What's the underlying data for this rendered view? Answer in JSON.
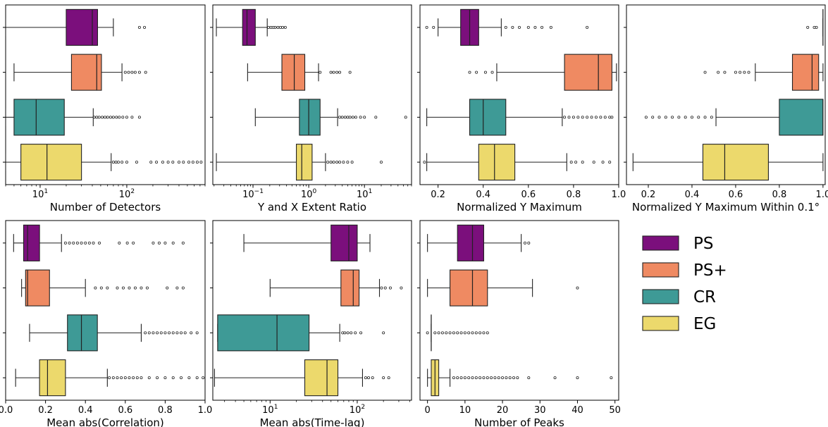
{
  "legend": {
    "placement": "right",
    "entries": [
      {
        "label": "PS",
        "color": "#7b0f7c"
      },
      {
        "label": "PS+",
        "color": "#ef8a62"
      },
      {
        "label": "CR",
        "color": "#3e9a96"
      },
      {
        "label": "EG",
        "color": "#ecd96c"
      }
    ]
  },
  "chart_data": [
    {
      "type": "box",
      "xlabel": "Number of Detectors",
      "scale": "log",
      "xlim": [
        4,
        800
      ],
      "ticks": [
        {
          "v": 10,
          "t": "10",
          "e": "1"
        },
        {
          "v": 100,
          "t": "10",
          "e": "2"
        }
      ],
      "series": [
        {
          "name": "PS",
          "whislo": 4,
          "q1": 20,
          "med": 40,
          "q3": 46,
          "whishi": 70,
          "fliers": [
            140,
            160
          ]
        },
        {
          "name": "PS+",
          "whislo": 5,
          "q1": 23,
          "med": 45,
          "q3": 51,
          "whishi": 88,
          "fliers": [
            96,
            105,
            115,
            125,
            140,
            165
          ]
        },
        {
          "name": "CR",
          "whislo": 4,
          "q1": 5,
          "med": 9,
          "q3": 19,
          "whishi": 41,
          "fliers": [
            42,
            45,
            48,
            52,
            56,
            60,
            65,
            70,
            76,
            82,
            90,
            100,
            115,
            140
          ]
        },
        {
          "name": "EG",
          "whislo": 4,
          "q1": 6,
          "med": 12,
          "q3": 30,
          "whishi": 66,
          "fliers": [
            70,
            75,
            80,
            88,
            100,
            130,
            190,
            220,
            260,
            300,
            340,
            400,
            450,
            520,
            580,
            650,
            720
          ]
        }
      ]
    },
    {
      "type": "box",
      "xlabel": "Y and X Extent Ratio",
      "scale": "log",
      "xlim": [
        0.019,
        70
      ],
      "ticks": [
        {
          "v": 0.1,
          "t": "10",
          "e": "−1"
        },
        {
          "v": 1,
          "t": "10",
          "e": "0"
        },
        {
          "v": 10,
          "t": "10",
          "e": "1"
        }
      ],
      "series": [
        {
          "name": "PS",
          "whislo": 0.022,
          "q1": 0.065,
          "med": 0.078,
          "q3": 0.11,
          "whishi": 0.18,
          "fliers": [
            0.19,
            0.21,
            0.23,
            0.25,
            0.28,
            0.31,
            0.34,
            0.38
          ]
        },
        {
          "name": "PS+",
          "whislo": 0.08,
          "q1": 0.33,
          "med": 0.55,
          "q3": 0.85,
          "whishi": 1.5,
          "fliers": [
            1.6,
            2.5,
            2.8,
            3.2,
            3.6,
            5.5
          ]
        },
        {
          "name": "CR",
          "whislo": 0.11,
          "q1": 0.68,
          "med": 1.0,
          "q3": 1.6,
          "whishi": 3.3,
          "fliers": [
            3.6,
            4.0,
            4.5,
            5.0,
            5.5,
            6.2,
            7.0,
            8.5,
            10,
            16,
            55
          ]
        },
        {
          "name": "EG",
          "whislo": 0.022,
          "q1": 0.6,
          "med": 0.75,
          "q3": 1.15,
          "whishi": 2.0,
          "fliers": [
            2.2,
            2.5,
            2.8,
            3.2,
            3.6,
            4.2,
            5.0,
            6.0,
            20
          ]
        }
      ]
    },
    {
      "type": "box",
      "xlabel": "Normalized Y Maximum",
      "scale": "linear",
      "xlim": [
        0.12,
        1.0
      ],
      "ticks": [
        {
          "v": 0.2,
          "t": "0.2"
        },
        {
          "v": 0.4,
          "t": "0.4"
        },
        {
          "v": 0.6,
          "t": "0.6"
        },
        {
          "v": 0.8,
          "t": "0.8"
        },
        {
          "v": 1.0,
          "t": "1.0"
        }
      ],
      "series": [
        {
          "name": "PS",
          "whislo": 0.2,
          "q1": 0.3,
          "med": 0.34,
          "q3": 0.38,
          "whishi": 0.48,
          "fliers": [
            0.15,
            0.18,
            0.5,
            0.53,
            0.56,
            0.6,
            0.63,
            0.66,
            0.7,
            0.86
          ]
        },
        {
          "name": "PS+",
          "whislo": 0.46,
          "q1": 0.76,
          "med": 0.91,
          "q3": 0.97,
          "whishi": 0.99,
          "fliers": [
            0.34,
            0.37,
            0.41,
            0.44
          ]
        },
        {
          "name": "CR",
          "whislo": 0.15,
          "q1": 0.34,
          "med": 0.4,
          "q3": 0.5,
          "whishi": 0.75,
          "fliers": [
            0.76,
            0.78,
            0.8,
            0.82,
            0.84,
            0.86,
            0.88,
            0.9,
            0.92,
            0.94,
            0.96,
            0.97
          ]
        },
        {
          "name": "EG",
          "whislo": 0.15,
          "q1": 0.38,
          "med": 0.45,
          "q3": 0.54,
          "whishi": 0.77,
          "fliers": [
            0.14,
            0.79,
            0.81,
            0.84,
            0.89,
            0.93,
            0.96
          ]
        }
      ]
    },
    {
      "type": "box",
      "xlabel": "Normalized Y Maximum Within 0.1°",
      "scale": "linear",
      "xlim": [
        0.1,
        1.01
      ],
      "ticks": [
        {
          "v": 0.2,
          "t": "0.2"
        },
        {
          "v": 0.4,
          "t": "0.4"
        },
        {
          "v": 0.6,
          "t": "0.6"
        },
        {
          "v": 0.8,
          "t": "0.8"
        },
        {
          "v": 1.0,
          "t": "1.0"
        }
      ],
      "series": [
        {
          "name": "PS",
          "whislo": 1.0,
          "q1": 1.0,
          "med": 1.0,
          "q3": 1.0,
          "whishi": 1.0,
          "fliers": [
            0.93,
            0.96,
            0.97
          ]
        },
        {
          "name": "PS+",
          "whislo": 0.69,
          "q1": 0.86,
          "med": 0.95,
          "q3": 0.98,
          "whishi": 1.0,
          "fliers": [
            0.46,
            0.52,
            0.55,
            0.6,
            0.62,
            0.64,
            0.66
          ]
        },
        {
          "name": "CR",
          "whislo": 0.51,
          "q1": 0.8,
          "med": 1.0,
          "q3": 1.0,
          "whishi": 1.0,
          "fliers": [
            0.19,
            0.22,
            0.25,
            0.28,
            0.31,
            0.34,
            0.37,
            0.4,
            0.43,
            0.46,
            0.49
          ]
        },
        {
          "name": "EG",
          "whislo": 0.13,
          "q1": 0.45,
          "med": 0.55,
          "q3": 0.75,
          "whishi": 1.0,
          "fliers": []
        }
      ]
    },
    {
      "type": "box",
      "xlabel": "Mean abs(Correlation)",
      "scale": "linear",
      "xlim": [
        0.0,
        1.0
      ],
      "ticks": [
        {
          "v": 0.0,
          "t": "0.0"
        },
        {
          "v": 0.2,
          "t": "0.2"
        },
        {
          "v": 0.4,
          "t": "0.4"
        },
        {
          "v": 0.6,
          "t": "0.6"
        },
        {
          "v": 0.8,
          "t": "0.8"
        },
        {
          "v": 1.0,
          "t": "1.0"
        }
      ],
      "series": [
        {
          "name": "PS",
          "whislo": 0.04,
          "q1": 0.09,
          "med": 0.11,
          "q3": 0.17,
          "whishi": 0.28,
          "fliers": [
            0.3,
            0.32,
            0.34,
            0.36,
            0.38,
            0.4,
            0.42,
            0.44,
            0.47,
            0.57,
            0.61,
            0.64,
            0.74,
            0.77,
            0.8,
            0.84,
            0.89
          ]
        },
        {
          "name": "PS+",
          "whislo": 0.08,
          "q1": 0.1,
          "med": 0.11,
          "q3": 0.22,
          "whishi": 0.4,
          "fliers": [
            0.45,
            0.48,
            0.51,
            0.56,
            0.59,
            0.62,
            0.65,
            0.68,
            0.71,
            0.81,
            0.86,
            0.89
          ]
        },
        {
          "name": "CR",
          "whislo": 0.12,
          "q1": 0.31,
          "med": 0.38,
          "q3": 0.46,
          "whishi": 0.68,
          "fliers": [
            0.7,
            0.72,
            0.74,
            0.76,
            0.78,
            0.8,
            0.82,
            0.84,
            0.86,
            0.88,
            0.9,
            0.93,
            0.96
          ]
        },
        {
          "name": "EG",
          "whislo": 0.05,
          "q1": 0.17,
          "med": 0.21,
          "q3": 0.3,
          "whishi": 0.51,
          "fliers": [
            0.52,
            0.54,
            0.56,
            0.58,
            0.6,
            0.62,
            0.64,
            0.66,
            0.68,
            0.72,
            0.76,
            0.8,
            0.84,
            0.88,
            0.92,
            0.96,
            0.99
          ]
        }
      ]
    },
    {
      "type": "box",
      "xlabel": "Mean abs(Time-lag)",
      "scale": "log",
      "xlim": [
        2.2,
        420
      ],
      "ticks": [
        {
          "v": 10,
          "t": "10",
          "e": "1"
        },
        {
          "v": 100,
          "t": "10",
          "e": "2"
        }
      ],
      "series": [
        {
          "name": "PS",
          "whislo": 5,
          "q1": 50,
          "med": 80,
          "q3": 100,
          "whishi": 140,
          "fliers": []
        },
        {
          "name": "PS+",
          "whislo": 10,
          "q1": 65,
          "med": 90,
          "q3": 105,
          "whishi": 180,
          "fliers": [
            190,
            210,
            240,
            320
          ]
        },
        {
          "name": "CR",
          "whislo": 2.5,
          "q1": 2.5,
          "med": 12,
          "q3": 28,
          "whishi": 63,
          "fliers": [
            68,
            72,
            78,
            85,
            95,
            110,
            200
          ]
        },
        {
          "name": "EG",
          "whislo": 2.3,
          "q1": 25,
          "med": 45,
          "q3": 60,
          "whishi": 115,
          "fliers": [
            125,
            135,
            150,
            200,
            230
          ]
        }
      ]
    },
    {
      "type": "box",
      "xlabel": "Number of Peaks",
      "scale": "linear",
      "xlim": [
        -2,
        51
      ],
      "ticks": [
        {
          "v": 0,
          "t": "0"
        },
        {
          "v": 10,
          "t": "10"
        },
        {
          "v": 20,
          "t": "20"
        },
        {
          "v": 30,
          "t": "30"
        },
        {
          "v": 40,
          "t": "40"
        },
        {
          "v": 50,
          "t": "50"
        }
      ],
      "series": [
        {
          "name": "PS",
          "whislo": 0,
          "q1": 8,
          "med": 12,
          "q3": 15,
          "whishi": 25,
          "fliers": [
            26,
            27
          ]
        },
        {
          "name": "PS+",
          "whislo": 0,
          "q1": 6,
          "med": 12,
          "q3": 16,
          "whishi": 28,
          "fliers": [
            40
          ]
        },
        {
          "name": "CR",
          "whislo": 1,
          "q1": 1,
          "med": 1,
          "q3": 1,
          "whishi": 1,
          "fliers": [
            0,
            2,
            3,
            4,
            5,
            6,
            7,
            8,
            9,
            10,
            11,
            12,
            13,
            14,
            15,
            16
          ]
        },
        {
          "name": "EG",
          "whislo": 0,
          "q1": 1,
          "med": 2,
          "q3": 3,
          "whishi": 6,
          "fliers": [
            7,
            8,
            9,
            10,
            11,
            12,
            13,
            14,
            15,
            16,
            17,
            18,
            19,
            20,
            21,
            22,
            23,
            24,
            27,
            34,
            40,
            49
          ]
        }
      ]
    }
  ]
}
